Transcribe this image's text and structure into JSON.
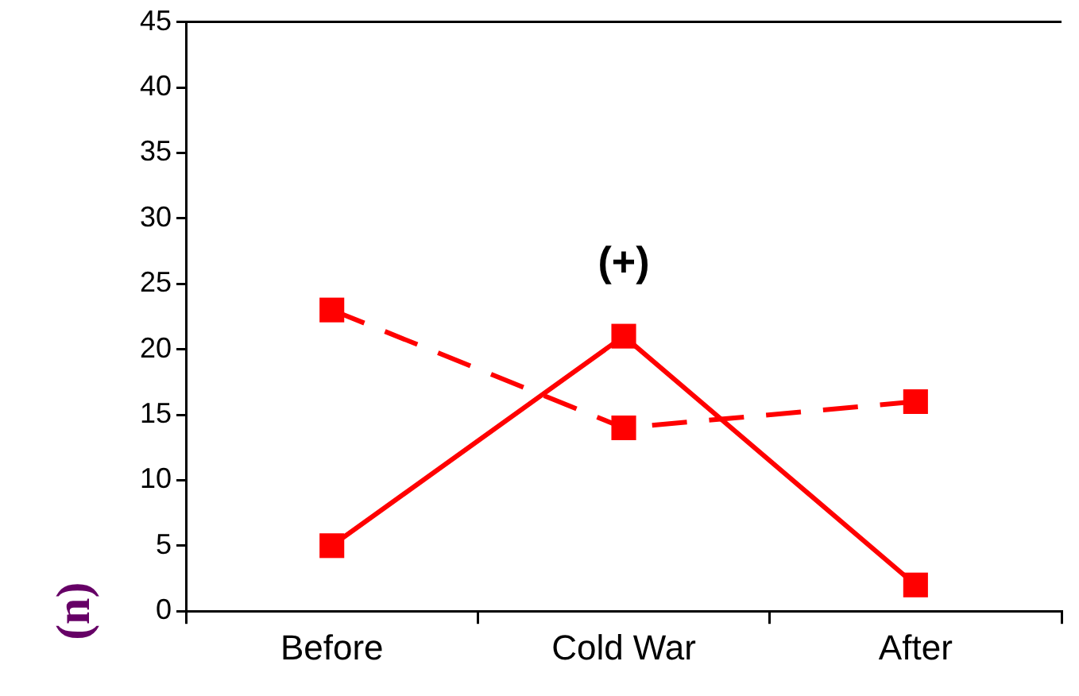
{
  "chart_data": {
    "type": "line",
    "categories": [
      "Before",
      "Cold War",
      "After"
    ],
    "series": [
      {
        "color": "#ff0000",
        "values": [
          5,
          21,
          2
        ],
        "line_style": "solid"
      },
      {
        "color": "#ff0000",
        "values": [
          23,
          14,
          16
        ],
        "line_style": "dashed"
      }
    ],
    "ylim": [
      0,
      45
    ],
    "yticks": [
      0,
      5,
      10,
      15,
      20,
      25,
      30,
      35,
      40,
      45
    ],
    "grid": false,
    "legend": false,
    "marker": "square",
    "annotations": [
      "(n)",
      "(+)"
    ]
  }
}
